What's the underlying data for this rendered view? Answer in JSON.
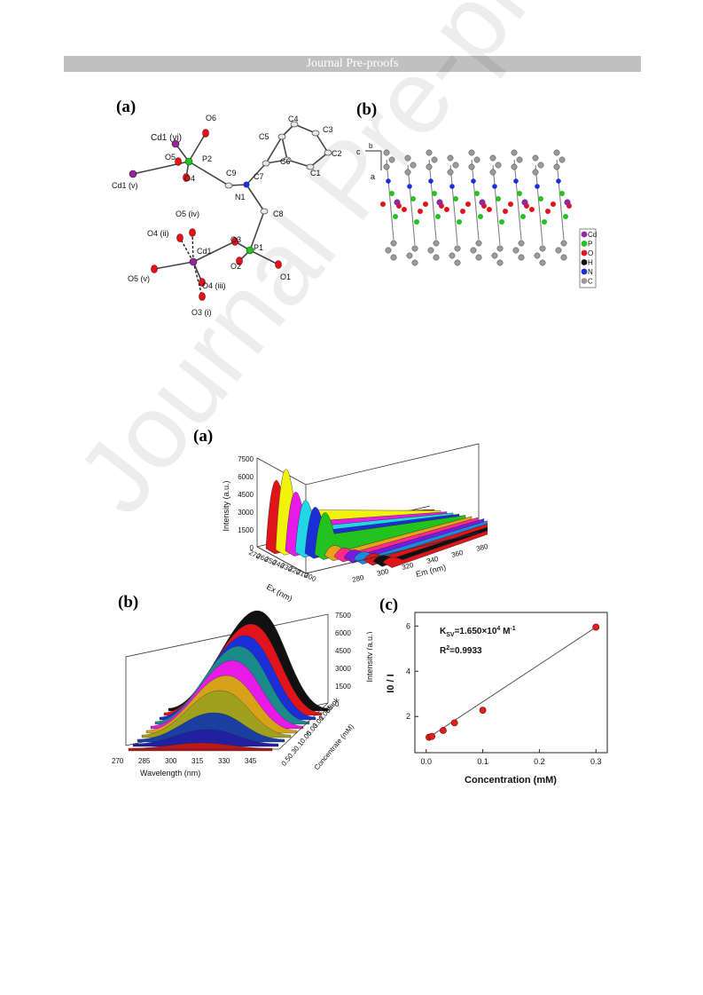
{
  "header": {
    "title": "Journal Pre-proofs"
  },
  "watermark": "Journal Pre-proofs",
  "figure1": {
    "label_a": "(a)",
    "label_b": "(b)",
    "atoms_a": [
      "Cd1 (vi)",
      "O6",
      "P2",
      "O5",
      "O4",
      "C9",
      "Cd1 (v)",
      "C5",
      "C4",
      "C3",
      "C6",
      "C2",
      "C7",
      "C1",
      "N1",
      "C8",
      "O5 (iv)",
      "O4 (ii)",
      "Cd1",
      "O3",
      "P1",
      "O2",
      "O5 (v)",
      "O4 (iii)",
      "O1",
      "O3 (i)"
    ],
    "axes_b": {
      "c": "c",
      "b": "b",
      "a": "a"
    },
    "legend": [
      "Cd",
      "P",
      "O",
      "H",
      "N",
      "C"
    ],
    "legend_colors": [
      "#8e2a9e",
      "#22c21f",
      "#e0141a",
      "#111111",
      "#1a2fd8",
      "#9a9a9a"
    ]
  },
  "figure2": {
    "label": "(a)",
    "zlabel": "Intensity (a.u.)",
    "xlabel": "Ex (nm)",
    "ylabel": "Em (nm)",
    "z_ticks": [
      "7500",
      "6000",
      "4500",
      "3000",
      "1500",
      "0"
    ],
    "ex_ticks": [
      "270",
      "260",
      "250",
      "240",
      "230",
      "220",
      "210",
      "200"
    ],
    "em_ticks": [
      "280",
      "300",
      "320",
      "340",
      "360",
      "380"
    ]
  },
  "figure3": {
    "label_b": "(b)",
    "xlabel": "Wavelength (nm)",
    "zlabel": "Intensity (a.u.)",
    "ylabel": "Concentrate (mM)",
    "x_ticks": [
      "270",
      "285",
      "300",
      "315",
      "330",
      "345"
    ],
    "z_ticks": [
      "7500",
      "6000",
      "4500",
      "3000",
      "1500",
      "0"
    ],
    "conc_ticks": [
      "Blank",
      "0.005",
      "0.01",
      "0.03",
      "0.05",
      "0.1",
      "0.3",
      "0.5"
    ],
    "label_c": "(c)"
  },
  "chart_data": {
    "type": "scatter",
    "title": "",
    "xlabel": "Concentration (mM)",
    "ylabel": "I0 / I",
    "ksv_label": "K",
    "ksv_sub": "SV",
    "ksv_value": "=1.650×10",
    "ksv_exp": "4",
    "ksv_unit": " M",
    "ksv_unit_exp": "-1",
    "r2_label": "R",
    "r2_exp": "2",
    "r2_value": "=0.9933",
    "x_ticks": [
      "0.0",
      "0.1",
      "0.2",
      "0.3"
    ],
    "y_ticks": [
      "2",
      "4",
      "6"
    ],
    "xlim": [
      -0.02,
      0.32
    ],
    "ylim": [
      0.4,
      6.6
    ],
    "series": [
      {
        "x": [
          0.005,
          0.01,
          0.03,
          0.05,
          0.1,
          0.3
        ],
        "y": [
          1.08,
          1.12,
          1.38,
          1.72,
          2.28,
          5.95
        ]
      }
    ],
    "fit": {
      "x": [
        0.0,
        0.3
      ],
      "y": [
        1.0,
        5.95
      ]
    },
    "point_color": "#e02020"
  }
}
